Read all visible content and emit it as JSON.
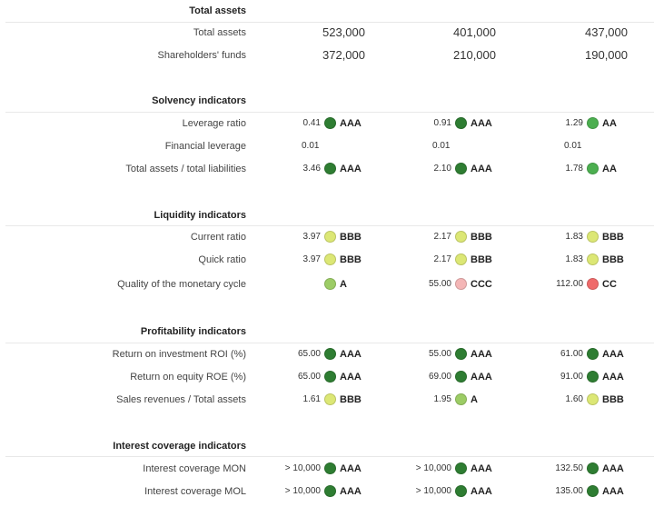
{
  "colors": {
    "dark_green": "#2e7d32",
    "green": "#4caf50",
    "light_green": "#9ccc65",
    "yellow_green": "#dce775",
    "light_red": "#f4b6b6",
    "red": "#ef6b6b"
  },
  "total_assets": {
    "title": "Total assets",
    "rows": [
      {
        "label": "Total assets",
        "values": [
          "523,000",
          "401,000",
          "437,000"
        ]
      },
      {
        "label": "Shareholders' funds",
        "values": [
          "372,000",
          "210,000",
          "190,000"
        ]
      }
    ]
  },
  "solvency": {
    "title": "Solvency indicators",
    "rows": [
      {
        "label": "Leverage ratio",
        "cells": [
          {
            "value": "0.41",
            "rating": "AAA",
            "color": "#2e7d32"
          },
          {
            "value": "0.91",
            "rating": "AAA",
            "color": "#2e7d32"
          },
          {
            "value": "1.29",
            "rating": "AA",
            "color": "#4caf50"
          }
        ]
      },
      {
        "label": "Financial leverage",
        "cells": [
          {
            "value": "0.01",
            "rating": "",
            "color": ""
          },
          {
            "value": "0.01",
            "rating": "",
            "color": ""
          },
          {
            "value": "0.01",
            "rating": "",
            "color": ""
          }
        ]
      },
      {
        "label": "Total assets / total liabilities",
        "cells": [
          {
            "value": "3.46",
            "rating": "AAA",
            "color": "#2e7d32"
          },
          {
            "value": "2.10",
            "rating": "AAA",
            "color": "#2e7d32"
          },
          {
            "value": "1.78",
            "rating": "AA",
            "color": "#4caf50"
          }
        ]
      }
    ]
  },
  "liquidity": {
    "title": "Liquidity indicators",
    "rows": [
      {
        "label": "Current ratio",
        "cells": [
          {
            "value": "3.97",
            "rating": "BBB",
            "color": "#dce775"
          },
          {
            "value": "2.17",
            "rating": "BBB",
            "color": "#dce775"
          },
          {
            "value": "1.83",
            "rating": "BBB",
            "color": "#dce775"
          }
        ]
      },
      {
        "label": "Quick ratio",
        "cells": [
          {
            "value": "3.97",
            "rating": "BBB",
            "color": "#dce775"
          },
          {
            "value": "2.17",
            "rating": "BBB",
            "color": "#dce775"
          },
          {
            "value": "1.83",
            "rating": "BBB",
            "color": "#dce775"
          }
        ]
      },
      {
        "label": "Quality of the monetary cycle",
        "cells": [
          {
            "value": "",
            "rating": "A",
            "color": "#9ccc65"
          },
          {
            "value": "55.00",
            "rating": "CCC",
            "color": "#f4b6b6"
          },
          {
            "value": "112.00",
            "rating": "CC",
            "color": "#ef6b6b"
          }
        ]
      }
    ]
  },
  "profitability": {
    "title": "Profitability indicators",
    "rows": [
      {
        "label": "Return on investment ROI (%)",
        "cells": [
          {
            "value": "65.00",
            "rating": "AAA",
            "color": "#2e7d32"
          },
          {
            "value": "55.00",
            "rating": "AAA",
            "color": "#2e7d32"
          },
          {
            "value": "61.00",
            "rating": "AAA",
            "color": "#2e7d32"
          }
        ]
      },
      {
        "label": "Return on equity ROE (%)",
        "cells": [
          {
            "value": "65.00",
            "rating": "AAA",
            "color": "#2e7d32"
          },
          {
            "value": "69.00",
            "rating": "AAA",
            "color": "#2e7d32"
          },
          {
            "value": "91.00",
            "rating": "AAA",
            "color": "#2e7d32"
          }
        ]
      },
      {
        "label": "Sales revenues / Total assets",
        "cells": [
          {
            "value": "1.61",
            "rating": "BBB",
            "color": "#dce775"
          },
          {
            "value": "1.95",
            "rating": "A",
            "color": "#9ccc65"
          },
          {
            "value": "1.60",
            "rating": "BBB",
            "color": "#dce775"
          }
        ]
      }
    ]
  },
  "interest": {
    "title": "Interest coverage indicators",
    "rows": [
      {
        "label": "Interest coverage MON",
        "cells": [
          {
            "value": "> 10,000",
            "rating": "AAA",
            "color": "#2e7d32"
          },
          {
            "value": "> 10,000",
            "rating": "AAA",
            "color": "#2e7d32"
          },
          {
            "value": "132.50",
            "rating": "AAA",
            "color": "#2e7d32"
          }
        ]
      },
      {
        "label": "Interest coverage MOL",
        "cells": [
          {
            "value": "> 10,000",
            "rating": "AAA",
            "color": "#2e7d32"
          },
          {
            "value": "> 10,000",
            "rating": "AAA",
            "color": "#2e7d32"
          },
          {
            "value": "135.00",
            "rating": "AAA",
            "color": "#2e7d32"
          }
        ]
      }
    ]
  }
}
